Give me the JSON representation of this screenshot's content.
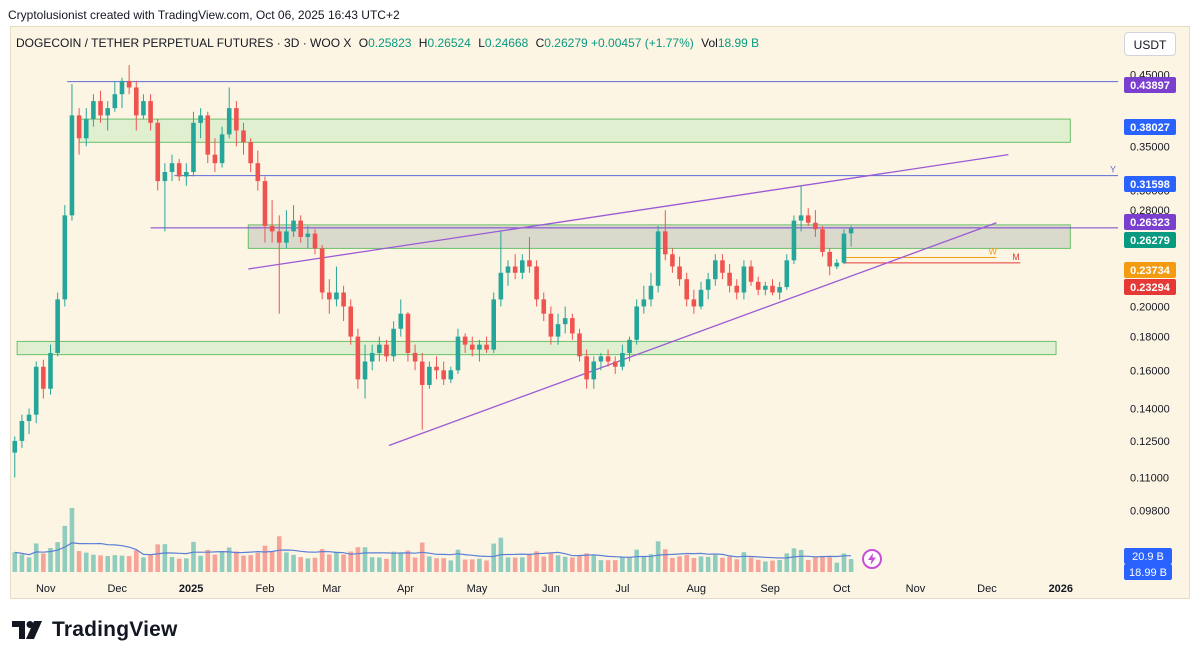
{
  "header": {
    "created_text": "Cryptolusionist created with TradingView.com, Oct 06, 2025 16:43 UTC+2"
  },
  "legend": {
    "symbol": "DOGECOIN / TETHER PERPETUAL FUTURES · 3D · WOO X",
    "open_label": "O",
    "open": "0.25823",
    "high_label": "H",
    "high": "0.26524",
    "low_label": "L",
    "low": "0.24668",
    "close_label": "C",
    "close": "0.26279",
    "change": "+0.00457 (+1.77%)",
    "vol_label": "Vol",
    "vol": "18.99 B"
  },
  "currency_button": "USDT",
  "footer": {
    "brand": "TradingView",
    "logo_icon": "tradingview-logo-icon"
  },
  "colors": {
    "up": "#26a69a",
    "down": "#ef5350",
    "channel": "#9b59d6",
    "zone_fill": "#cfe8c4",
    "zone_stroke": "#6bbf6b",
    "volume_ma": "#5b7fd6"
  },
  "chart_data": {
    "type": "candlestick",
    "interval": "3D",
    "log_scale": true,
    "price_axis_ticks": [
      "0.45000",
      "0.38000",
      "0.35000",
      "0.30000",
      "0.28000",
      "0.20000",
      "0.18000",
      "0.16000",
      "0.14000",
      "0.12500",
      "0.11000",
      "0.09800"
    ],
    "time_axis_ticks": [
      "Nov",
      "Dec",
      "2025",
      "Feb",
      "Mar",
      "Apr",
      "May",
      "Jun",
      "Jul",
      "Aug",
      "Sep",
      "Oct",
      "Nov",
      "Dec",
      "2026"
    ],
    "price_labels": [
      {
        "value": "0.43897",
        "color": "#7b3fcf"
      },
      {
        "value": "0.38027",
        "color": "#2962ff"
      },
      {
        "value": "0.31598",
        "color": "#2962ff"
      },
      {
        "value": "0.26323",
        "color": "#7b3fcf"
      },
      {
        "value": "0.26279",
        "color": "#089981"
      },
      {
        "value": "0.23734",
        "color": "#f39c12"
      },
      {
        "value": "0.23294",
        "color": "#e53935"
      }
    ],
    "volume_labels": [
      {
        "value": "20.9 B",
        "color": "#2962ff"
      },
      {
        "value": "18.99 B",
        "color": "#2962ff"
      }
    ],
    "horizontal_lines": [
      {
        "price": 0.43897,
        "from": "2024-11-10",
        "color": "#5b6bd6"
      },
      {
        "price": 0.31598,
        "from": "2024-12-25",
        "color": "#5b6bd6",
        "label": "Y"
      },
      {
        "price": 0.26323,
        "from": "2024-12-15",
        "color": "#7b3fcf"
      },
      {
        "price": 0.23734,
        "from": "2025-10-02",
        "to": "2025-12-05",
        "color": "#f39c12",
        "label": "W"
      },
      {
        "price": 0.23294,
        "from": "2025-10-02",
        "to": "2025-12-15",
        "color": "#e53935",
        "label": "M"
      }
    ],
    "zones": [
      {
        "from": "2024-11-15",
        "to": "2026-01-05",
        "low": 0.355,
        "high": 0.385,
        "fill": "#d4ecc8"
      },
      {
        "from": "2025-01-25",
        "to": "2026-01-05",
        "low": 0.245,
        "high": 0.266,
        "fill": "#cdd0c4"
      },
      {
        "from": "2024-10-20",
        "to": "2025-12-30",
        "low": 0.169,
        "high": 0.177,
        "fill": "#d4ecc8"
      }
    ],
    "trendlines": [
      {
        "from": {
          "t": "2025-01-25",
          "p": 0.228
        },
        "to": {
          "t": "2025-12-10",
          "p": 0.34
        }
      },
      {
        "from": {
          "t": "2025-03-25",
          "p": 0.123
        },
        "to": {
          "t": "2025-12-05",
          "p": 0.268
        }
      }
    ],
    "candles": [
      {
        "t": "2024-10-19",
        "o": 0.12,
        "h": 0.127,
        "l": 0.11,
        "c": 0.125
      },
      {
        "t": "2024-10-22",
        "o": 0.125,
        "h": 0.137,
        "l": 0.122,
        "c": 0.134
      },
      {
        "t": "2024-10-25",
        "o": 0.134,
        "h": 0.14,
        "l": 0.128,
        "c": 0.137
      },
      {
        "t": "2024-10-28",
        "o": 0.137,
        "h": 0.165,
        "l": 0.133,
        "c": 0.162
      },
      {
        "t": "2024-10-31",
        "o": 0.162,
        "h": 0.166,
        "l": 0.145,
        "c": 0.15
      },
      {
        "t": "2024-11-03",
        "o": 0.15,
        "h": 0.175,
        "l": 0.147,
        "c": 0.17
      },
      {
        "t": "2024-11-06",
        "o": 0.17,
        "h": 0.21,
        "l": 0.168,
        "c": 0.205
      },
      {
        "t": "2024-11-09",
        "o": 0.205,
        "h": 0.285,
        "l": 0.2,
        "c": 0.275
      },
      {
        "t": "2024-11-12",
        "o": 0.275,
        "h": 0.435,
        "l": 0.27,
        "c": 0.39
      },
      {
        "t": "2024-11-15",
        "o": 0.39,
        "h": 0.4,
        "l": 0.34,
        "c": 0.36
      },
      {
        "t": "2024-11-18",
        "o": 0.36,
        "h": 0.4,
        "l": 0.35,
        "c": 0.385
      },
      {
        "t": "2024-11-21",
        "o": 0.385,
        "h": 0.42,
        "l": 0.375,
        "c": 0.41
      },
      {
        "t": "2024-11-24",
        "o": 0.41,
        "h": 0.425,
        "l": 0.38,
        "c": 0.39
      },
      {
        "t": "2024-11-27",
        "o": 0.39,
        "h": 0.41,
        "l": 0.37,
        "c": 0.4
      },
      {
        "t": "2024-11-30",
        "o": 0.4,
        "h": 0.44,
        "l": 0.395,
        "c": 0.42
      },
      {
        "t": "2024-12-03",
        "o": 0.42,
        "h": 0.445,
        "l": 0.4,
        "c": 0.44
      },
      {
        "t": "2024-12-06",
        "o": 0.44,
        "h": 0.465,
        "l": 0.42,
        "c": 0.43
      },
      {
        "t": "2024-12-09",
        "o": 0.43,
        "h": 0.44,
        "l": 0.37,
        "c": 0.39
      },
      {
        "t": "2024-12-12",
        "o": 0.39,
        "h": 0.42,
        "l": 0.385,
        "c": 0.41
      },
      {
        "t": "2024-12-15",
        "o": 0.41,
        "h": 0.42,
        "l": 0.37,
        "c": 0.38
      },
      {
        "t": "2024-12-18",
        "o": 0.38,
        "h": 0.385,
        "l": 0.3,
        "c": 0.31
      },
      {
        "t": "2024-12-21",
        "o": 0.31,
        "h": 0.33,
        "l": 0.26,
        "c": 0.32
      },
      {
        "t": "2024-12-24",
        "o": 0.32,
        "h": 0.34,
        "l": 0.31,
        "c": 0.33
      },
      {
        "t": "2024-12-27",
        "o": 0.33,
        "h": 0.335,
        "l": 0.31,
        "c": 0.315
      },
      {
        "t": "2024-12-30",
        "o": 0.315,
        "h": 0.33,
        "l": 0.305,
        "c": 0.32
      },
      {
        "t": "2025-01-02",
        "o": 0.32,
        "h": 0.395,
        "l": 0.315,
        "c": 0.38
      },
      {
        "t": "2025-01-05",
        "o": 0.38,
        "h": 0.4,
        "l": 0.36,
        "c": 0.39
      },
      {
        "t": "2025-01-08",
        "o": 0.39,
        "h": 0.395,
        "l": 0.33,
        "c": 0.34
      },
      {
        "t": "2025-01-11",
        "o": 0.34,
        "h": 0.36,
        "l": 0.32,
        "c": 0.33
      },
      {
        "t": "2025-01-14",
        "o": 0.33,
        "h": 0.375,
        "l": 0.325,
        "c": 0.365
      },
      {
        "t": "2025-01-17",
        "o": 0.365,
        "h": 0.43,
        "l": 0.36,
        "c": 0.4
      },
      {
        "t": "2025-01-20",
        "o": 0.4,
        "h": 0.41,
        "l": 0.35,
        "c": 0.37
      },
      {
        "t": "2025-01-23",
        "o": 0.37,
        "h": 0.38,
        "l": 0.34,
        "c": 0.355
      },
      {
        "t": "2025-01-26",
        "o": 0.355,
        "h": 0.36,
        "l": 0.32,
        "c": 0.33
      },
      {
        "t": "2025-01-29",
        "o": 0.33,
        "h": 0.345,
        "l": 0.3,
        "c": 0.31
      },
      {
        "t": "2025-02-01",
        "o": 0.31,
        "h": 0.315,
        "l": 0.25,
        "c": 0.265
      },
      {
        "t": "2025-02-04",
        "o": 0.265,
        "h": 0.29,
        "l": 0.25,
        "c": 0.26
      },
      {
        "t": "2025-02-07",
        "o": 0.26,
        "h": 0.275,
        "l": 0.195,
        "c": 0.25
      },
      {
        "t": "2025-02-10",
        "o": 0.25,
        "h": 0.28,
        "l": 0.245,
        "c": 0.26
      },
      {
        "t": "2025-02-13",
        "o": 0.26,
        "h": 0.285,
        "l": 0.255,
        "c": 0.27
      },
      {
        "t": "2025-02-16",
        "o": 0.27,
        "h": 0.275,
        "l": 0.25,
        "c": 0.255
      },
      {
        "t": "2025-02-19",
        "o": 0.255,
        "h": 0.265,
        "l": 0.245,
        "c": 0.258
      },
      {
        "t": "2025-02-22",
        "o": 0.258,
        "h": 0.262,
        "l": 0.24,
        "c": 0.245
      },
      {
        "t": "2025-02-25",
        "o": 0.245,
        "h": 0.248,
        "l": 0.205,
        "c": 0.21
      },
      {
        "t": "2025-02-28",
        "o": 0.21,
        "h": 0.22,
        "l": 0.195,
        "c": 0.205
      },
      {
        "t": "2025-03-03",
        "o": 0.205,
        "h": 0.23,
        "l": 0.2,
        "c": 0.21
      },
      {
        "t": "2025-03-06",
        "o": 0.21,
        "h": 0.215,
        "l": 0.19,
        "c": 0.2
      },
      {
        "t": "2025-03-09",
        "o": 0.2,
        "h": 0.205,
        "l": 0.175,
        "c": 0.18
      },
      {
        "t": "2025-03-12",
        "o": 0.18,
        "h": 0.185,
        "l": 0.15,
        "c": 0.155
      },
      {
        "t": "2025-03-15",
        "o": 0.155,
        "h": 0.175,
        "l": 0.145,
        "c": 0.165
      },
      {
        "t": "2025-03-18",
        "o": 0.165,
        "h": 0.175,
        "l": 0.16,
        "c": 0.17
      },
      {
        "t": "2025-03-21",
        "o": 0.17,
        "h": 0.18,
        "l": 0.165,
        "c": 0.175
      },
      {
        "t": "2025-03-24",
        "o": 0.175,
        "h": 0.178,
        "l": 0.165,
        "c": 0.168
      },
      {
        "t": "2025-03-27",
        "o": 0.168,
        "h": 0.19,
        "l": 0.165,
        "c": 0.185
      },
      {
        "t": "2025-03-30",
        "o": 0.185,
        "h": 0.205,
        "l": 0.18,
        "c": 0.195
      },
      {
        "t": "2025-04-02",
        "o": 0.195,
        "h": 0.196,
        "l": 0.165,
        "c": 0.17
      },
      {
        "t": "2025-04-05",
        "o": 0.17,
        "h": 0.175,
        "l": 0.16,
        "c": 0.165
      },
      {
        "t": "2025-04-08",
        "o": 0.165,
        "h": 0.17,
        "l": 0.13,
        "c": 0.152
      },
      {
        "t": "2025-04-11",
        "o": 0.152,
        "h": 0.165,
        "l": 0.15,
        "c": 0.162
      },
      {
        "t": "2025-04-14",
        "o": 0.162,
        "h": 0.168,
        "l": 0.155,
        "c": 0.16
      },
      {
        "t": "2025-04-17",
        "o": 0.16,
        "h": 0.165,
        "l": 0.152,
        "c": 0.155
      },
      {
        "t": "2025-04-20",
        "o": 0.155,
        "h": 0.162,
        "l": 0.153,
        "c": 0.16
      },
      {
        "t": "2025-04-23",
        "o": 0.16,
        "h": 0.185,
        "l": 0.158,
        "c": 0.18
      },
      {
        "t": "2025-04-26",
        "o": 0.18,
        "h": 0.182,
        "l": 0.17,
        "c": 0.175
      },
      {
        "t": "2025-04-29",
        "o": 0.175,
        "h": 0.18,
        "l": 0.168,
        "c": 0.172
      },
      {
        "t": "2025-05-02",
        "o": 0.172,
        "h": 0.178,
        "l": 0.165,
        "c": 0.175
      },
      {
        "t": "2025-05-05",
        "o": 0.175,
        "h": 0.18,
        "l": 0.17,
        "c": 0.172
      },
      {
        "t": "2025-05-08",
        "o": 0.172,
        "h": 0.21,
        "l": 0.17,
        "c": 0.205
      },
      {
        "t": "2025-05-11",
        "o": 0.205,
        "h": 0.26,
        "l": 0.2,
        "c": 0.225
      },
      {
        "t": "2025-05-14",
        "o": 0.225,
        "h": 0.235,
        "l": 0.215,
        "c": 0.23
      },
      {
        "t": "2025-05-17",
        "o": 0.23,
        "h": 0.24,
        "l": 0.22,
        "c": 0.225
      },
      {
        "t": "2025-05-20",
        "o": 0.225,
        "h": 0.24,
        "l": 0.22,
        "c": 0.235
      },
      {
        "t": "2025-05-23",
        "o": 0.235,
        "h": 0.255,
        "l": 0.225,
        "c": 0.23
      },
      {
        "t": "2025-05-26",
        "o": 0.23,
        "h": 0.235,
        "l": 0.2,
        "c": 0.205
      },
      {
        "t": "2025-05-29",
        "o": 0.205,
        "h": 0.21,
        "l": 0.19,
        "c": 0.195
      },
      {
        "t": "2025-06-01",
        "o": 0.195,
        "h": 0.2,
        "l": 0.175,
        "c": 0.18
      },
      {
        "t": "2025-06-04",
        "o": 0.18,
        "h": 0.195,
        "l": 0.175,
        "c": 0.188
      },
      {
        "t": "2025-06-07",
        "o": 0.188,
        "h": 0.2,
        "l": 0.182,
        "c": 0.192
      },
      {
        "t": "2025-06-10",
        "o": 0.192,
        "h": 0.195,
        "l": 0.178,
        "c": 0.182
      },
      {
        "t": "2025-06-13",
        "o": 0.182,
        "h": 0.185,
        "l": 0.165,
        "c": 0.168
      },
      {
        "t": "2025-06-16",
        "o": 0.168,
        "h": 0.172,
        "l": 0.15,
        "c": 0.155
      },
      {
        "t": "2025-06-19",
        "o": 0.155,
        "h": 0.168,
        "l": 0.15,
        "c": 0.165
      },
      {
        "t": "2025-06-22",
        "o": 0.165,
        "h": 0.17,
        "l": 0.16,
        "c": 0.168
      },
      {
        "t": "2025-06-25",
        "o": 0.168,
        "h": 0.172,
        "l": 0.162,
        "c": 0.165
      },
      {
        "t": "2025-06-28",
        "o": 0.165,
        "h": 0.168,
        "l": 0.158,
        "c": 0.162
      },
      {
        "t": "2025-07-01",
        "o": 0.162,
        "h": 0.175,
        "l": 0.16,
        "c": 0.17
      },
      {
        "t": "2025-07-04",
        "o": 0.17,
        "h": 0.18,
        "l": 0.165,
        "c": 0.178
      },
      {
        "t": "2025-07-07",
        "o": 0.178,
        "h": 0.205,
        "l": 0.175,
        "c": 0.2
      },
      {
        "t": "2025-07-10",
        "o": 0.2,
        "h": 0.215,
        "l": 0.195,
        "c": 0.205
      },
      {
        "t": "2025-07-13",
        "o": 0.205,
        "h": 0.225,
        "l": 0.2,
        "c": 0.215
      },
      {
        "t": "2025-07-16",
        "o": 0.215,
        "h": 0.265,
        "l": 0.21,
        "c": 0.26
      },
      {
        "t": "2025-07-19",
        "o": 0.26,
        "h": 0.28,
        "l": 0.235,
        "c": 0.24
      },
      {
        "t": "2025-07-22",
        "o": 0.24,
        "h": 0.245,
        "l": 0.225,
        "c": 0.23
      },
      {
        "t": "2025-07-25",
        "o": 0.23,
        "h": 0.238,
        "l": 0.215,
        "c": 0.22
      },
      {
        "t": "2025-07-28",
        "o": 0.22,
        "h": 0.225,
        "l": 0.2,
        "c": 0.205
      },
      {
        "t": "2025-07-31",
        "o": 0.205,
        "h": 0.212,
        "l": 0.195,
        "c": 0.2
      },
      {
        "t": "2025-08-03",
        "o": 0.2,
        "h": 0.218,
        "l": 0.198,
        "c": 0.212
      },
      {
        "t": "2025-08-06",
        "o": 0.212,
        "h": 0.225,
        "l": 0.205,
        "c": 0.22
      },
      {
        "t": "2025-08-09",
        "o": 0.22,
        "h": 0.24,
        "l": 0.215,
        "c": 0.235
      },
      {
        "t": "2025-08-12",
        "o": 0.235,
        "h": 0.24,
        "l": 0.22,
        "c": 0.225
      },
      {
        "t": "2025-08-15",
        "o": 0.225,
        "h": 0.232,
        "l": 0.21,
        "c": 0.215
      },
      {
        "t": "2025-08-18",
        "o": 0.215,
        "h": 0.22,
        "l": 0.205,
        "c": 0.21
      },
      {
        "t": "2025-08-21",
        "o": 0.21,
        "h": 0.235,
        "l": 0.205,
        "c": 0.23
      },
      {
        "t": "2025-08-24",
        "o": 0.23,
        "h": 0.235,
        "l": 0.215,
        "c": 0.218
      },
      {
        "t": "2025-08-27",
        "o": 0.218,
        "h": 0.222,
        "l": 0.208,
        "c": 0.212
      },
      {
        "t": "2025-08-30",
        "o": 0.212,
        "h": 0.218,
        "l": 0.208,
        "c": 0.215
      },
      {
        "t": "2025-09-02",
        "o": 0.215,
        "h": 0.22,
        "l": 0.208,
        "c": 0.21
      },
      {
        "t": "2025-09-05",
        "o": 0.21,
        "h": 0.218,
        "l": 0.205,
        "c": 0.214
      },
      {
        "t": "2025-09-08",
        "o": 0.214,
        "h": 0.24,
        "l": 0.212,
        "c": 0.235
      },
      {
        "t": "2025-09-11",
        "o": 0.235,
        "h": 0.275,
        "l": 0.232,
        "c": 0.27
      },
      {
        "t": "2025-09-14",
        "o": 0.27,
        "h": 0.305,
        "l": 0.26,
        "c": 0.275
      },
      {
        "t": "2025-09-17",
        "o": 0.275,
        "h": 0.282,
        "l": 0.265,
        "c": 0.268
      },
      {
        "t": "2025-09-20",
        "o": 0.268,
        "h": 0.28,
        "l": 0.255,
        "c": 0.262
      },
      {
        "t": "2025-09-23",
        "o": 0.262,
        "h": 0.265,
        "l": 0.238,
        "c": 0.242
      },
      {
        "t": "2025-09-26",
        "o": 0.242,
        "h": 0.245,
        "l": 0.223,
        "c": 0.23
      },
      {
        "t": "2025-09-29",
        "o": 0.23,
        "h": 0.236,
        "l": 0.228,
        "c": 0.233
      },
      {
        "t": "2025-10-02",
        "o": 0.233,
        "h": 0.262,
        "l": 0.232,
        "c": 0.258
      },
      {
        "t": "2025-10-05",
        "o": 0.25823,
        "h": 0.26524,
        "l": 0.24668,
        "c": 0.26279
      }
    ]
  }
}
